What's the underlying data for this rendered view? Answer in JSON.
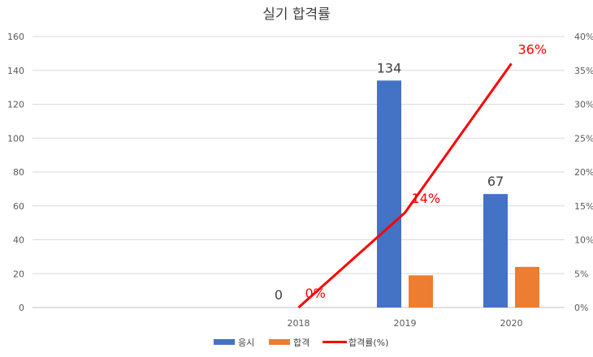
{
  "chart_data": {
    "type": "bar",
    "title": "실기 합격률",
    "categories": [
      "",
      "",
      "2018",
      "2019",
      "2020"
    ],
    "series": [
      {
        "name": "응시",
        "type": "bar",
        "axis": "left",
        "color": "#4472C4",
        "values": [
          null,
          null,
          0,
          134,
          67
        ],
        "data_labels": [
          "",
          "",
          "0",
          "134",
          "67"
        ]
      },
      {
        "name": "합격",
        "type": "bar",
        "axis": "left",
        "color": "#ED7D31",
        "values": [
          null,
          null,
          0,
          19,
          24
        ]
      },
      {
        "name": "합격률(%)",
        "type": "line",
        "axis": "right",
        "color": "#FF0000",
        "values": [
          null,
          null,
          0,
          14,
          36
        ],
        "data_labels": [
          "",
          "",
          "0%",
          "14%",
          "36%"
        ]
      }
    ],
    "y_left": {
      "min": 0,
      "max": 160,
      "step": 20,
      "tick_labels": [
        "0",
        "20",
        "40",
        "60",
        "80",
        "100",
        "120",
        "140",
        "160"
      ]
    },
    "y_right": {
      "min": 0,
      "max": 40,
      "step": 5,
      "tick_labels": [
        "0%",
        "5%",
        "10%",
        "15%",
        "20%",
        "25%",
        "30%",
        "35%",
        "40%"
      ]
    },
    "grid": true,
    "legend": "bottom"
  }
}
